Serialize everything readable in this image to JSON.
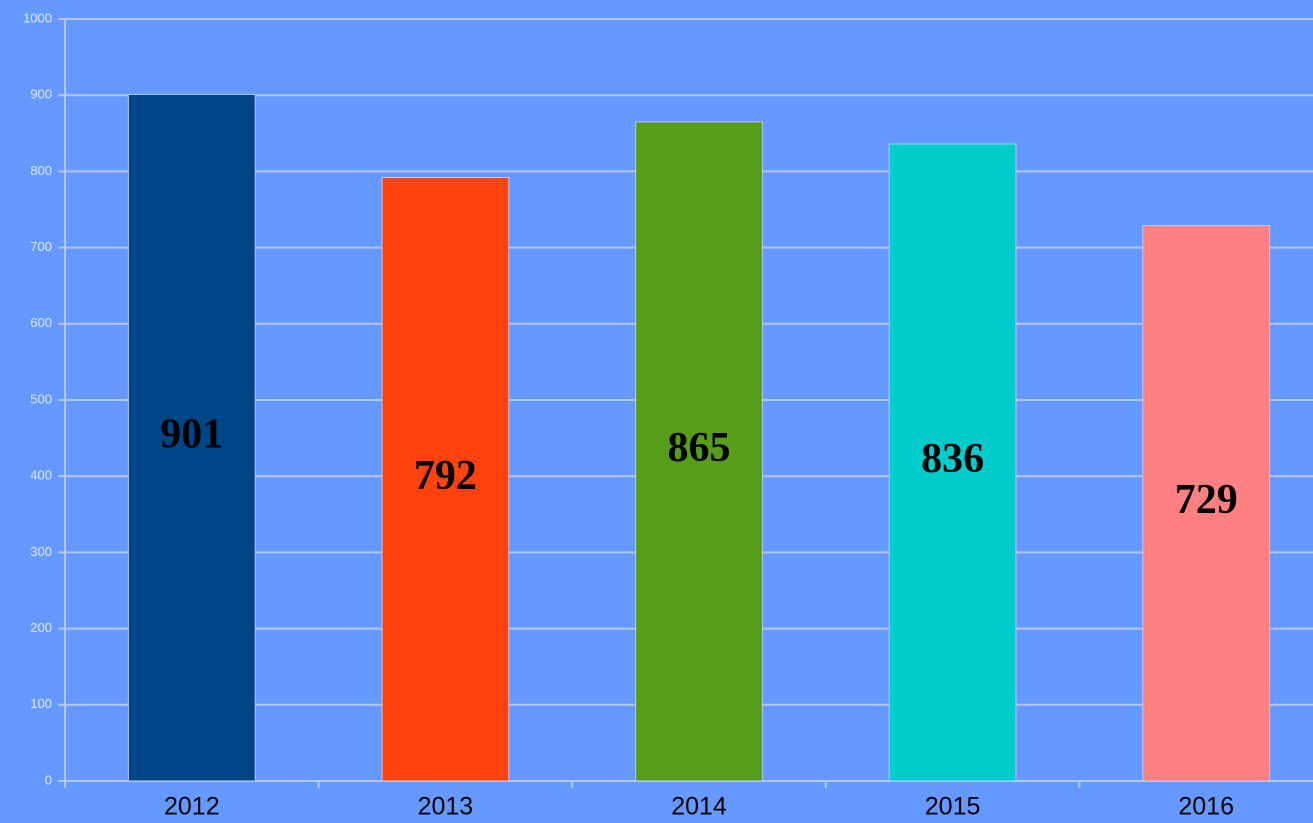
{
  "chart_data": {
    "type": "bar",
    "categories": [
      "2012",
      "2013",
      "2014",
      "2015",
      "2016"
    ],
    "values": [
      901,
      792,
      865,
      836,
      729
    ],
    "colors": [
      "#004586",
      "#ff420e",
      "#579d1c",
      "#00cccc",
      "#ff8080"
    ],
    "ylim": [
      0,
      1000
    ],
    "yticks": [
      0,
      100,
      200,
      300,
      400,
      500,
      600,
      700,
      800,
      900,
      1000
    ],
    "grid": true,
    "data_labels": true
  }
}
